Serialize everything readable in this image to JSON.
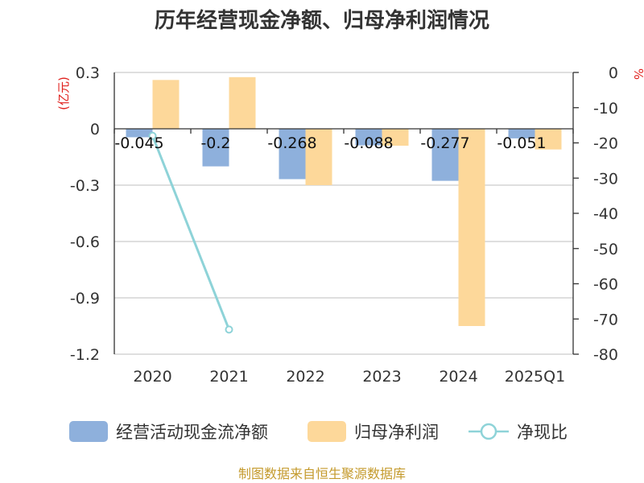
{
  "title": "历年经营现金净额、归母净利润情况",
  "source": "制图数据来自恒生聚源数据库",
  "chart_data": {
    "type": "bar",
    "categories": [
      "2020",
      "2021",
      "2022",
      "2023",
      "2024",
      "2025Q1"
    ],
    "y_left": {
      "unit": "(亿元)",
      "ticks": [
        "0.3",
        "0",
        "-0.3",
        "-0.6",
        "-0.9",
        "-1.2"
      ],
      "range": [
        -1.2,
        0.3
      ]
    },
    "y_right": {
      "unit": "%",
      "ticks": [
        "0",
        "-10",
        "-20",
        "-30",
        "-40",
        "-50",
        "-60",
        "-70",
        "-80"
      ],
      "range": [
        -80,
        0
      ]
    },
    "series": [
      {
        "name": "经营活动现金流净额",
        "type": "bar",
        "axis": "left",
        "color": "#8eb0dc",
        "values": [
          -0.045,
          -0.2,
          -0.268,
          -0.088,
          -0.277,
          -0.051
        ],
        "labels": [
          "-0.045",
          "-0.2",
          "-0.268",
          "-0.088",
          "-0.277",
          "-0.051"
        ]
      },
      {
        "name": "归母净利润",
        "type": "bar",
        "axis": "left",
        "color": "#fdd89a",
        "values": [
          0.26,
          0.275,
          -0.3,
          -0.09,
          -1.05,
          -0.11
        ]
      },
      {
        "name": "净现比",
        "type": "line",
        "axis": "right",
        "color": "#8ed3d8",
        "values": [
          -18,
          -73,
          null,
          null,
          null,
          null
        ]
      }
    ],
    "grid": true,
    "legend": "bottom"
  }
}
